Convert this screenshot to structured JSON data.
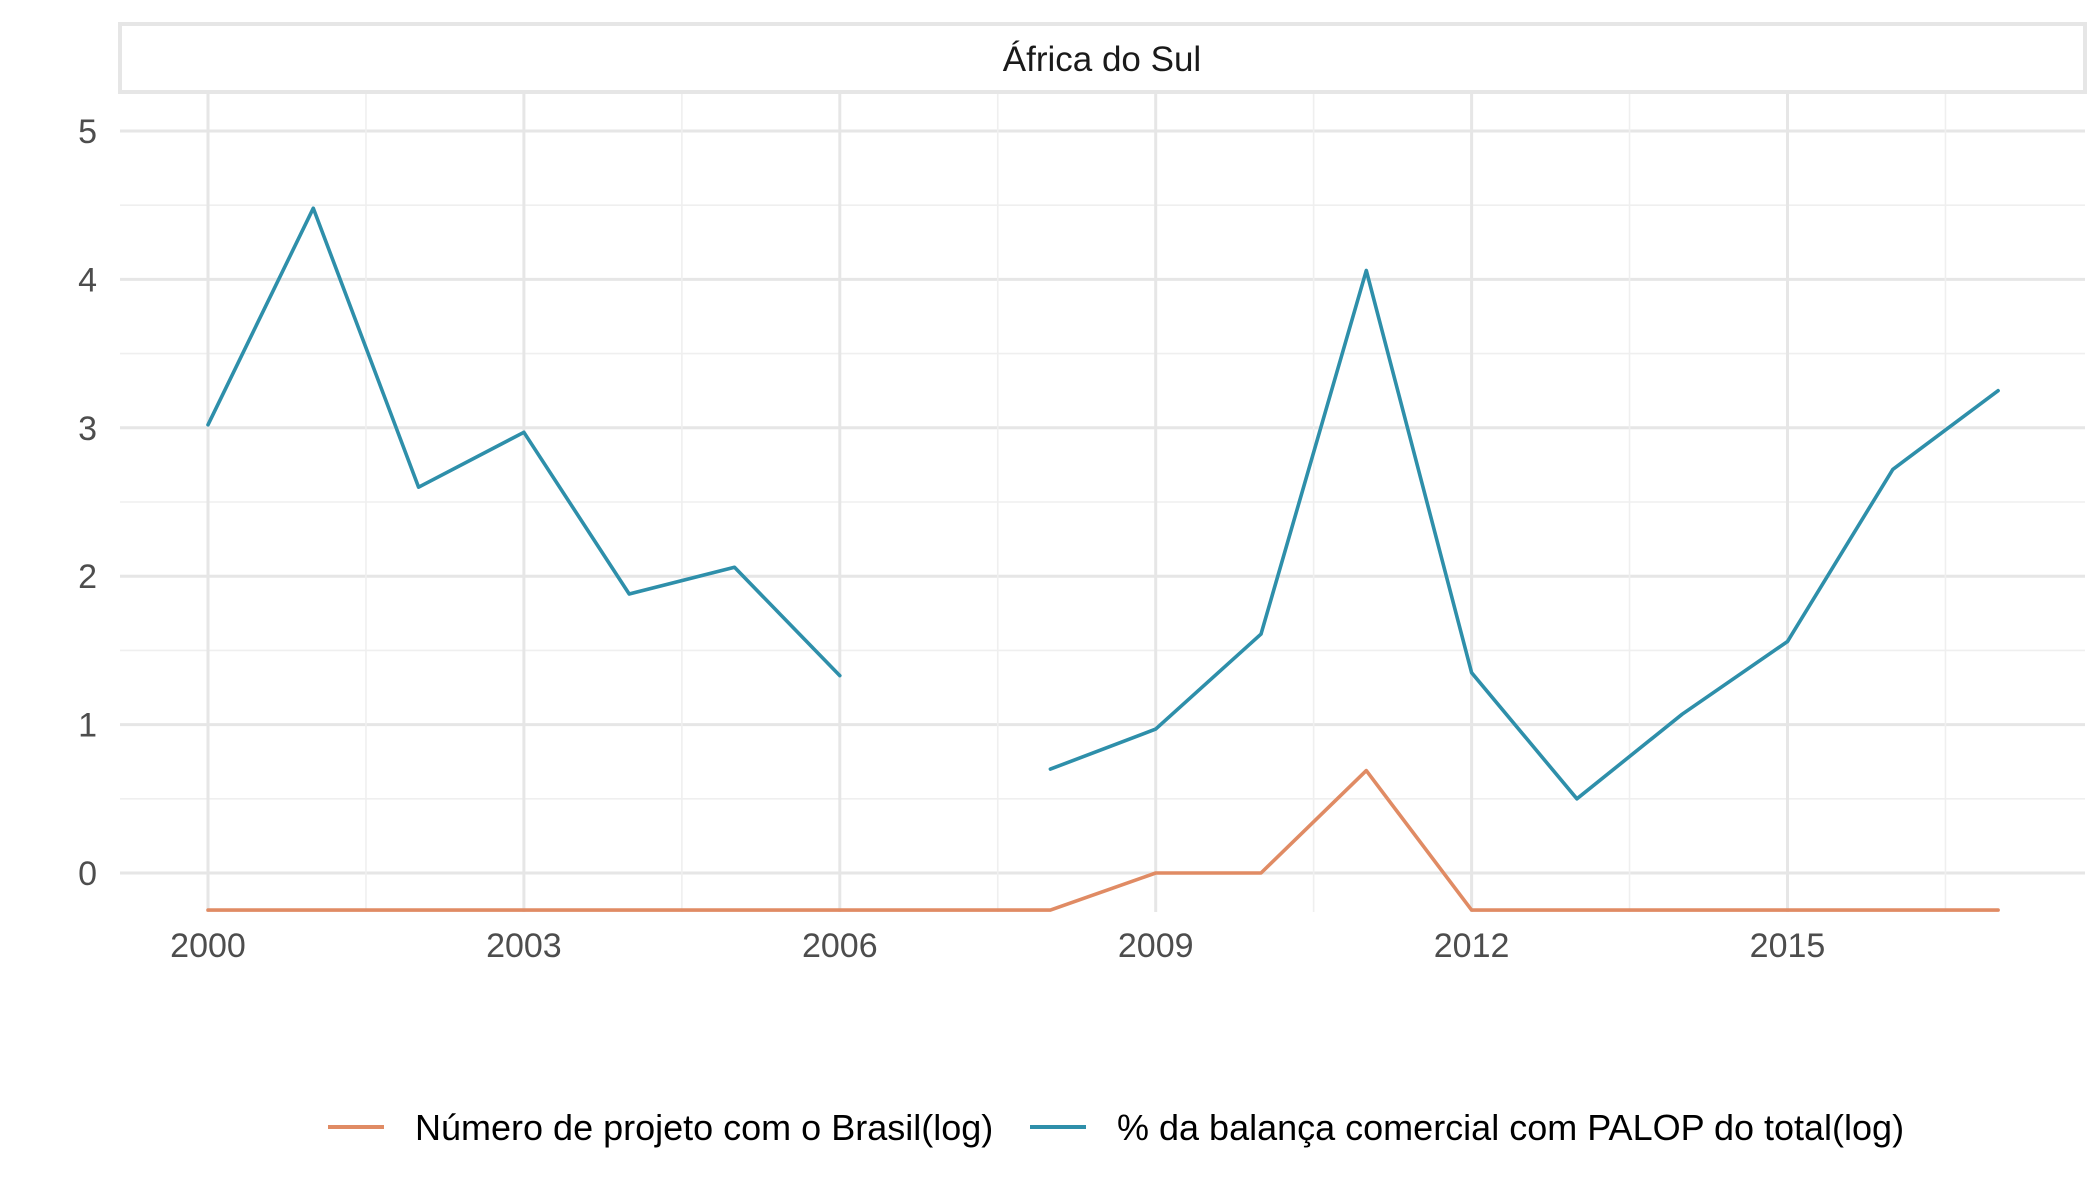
{
  "chart_data": {
    "type": "line",
    "panel_title": "África do Sul",
    "xlabel": "",
    "ylabel": "",
    "x_ticks": [
      2000,
      2003,
      2006,
      2009,
      2012,
      2015
    ],
    "y_ticks": [
      0,
      1,
      2,
      3,
      4,
      5
    ],
    "xlim": [
      2000,
      2017
    ],
    "ylim": [
      -0.25,
      5.15
    ],
    "grid": true,
    "legend_position": "bottom",
    "series": [
      {
        "name": "Número de projeto com o Brasil(log)",
        "color": "#E08B64",
        "points": [
          {
            "x": 2000,
            "y": -0.25
          },
          {
            "x": 2001,
            "y": -0.25
          },
          {
            "x": 2002,
            "y": -0.25
          },
          {
            "x": 2003,
            "y": -0.25
          },
          {
            "x": 2004,
            "y": -0.25
          },
          {
            "x": 2005,
            "y": -0.25
          },
          {
            "x": 2006,
            "y": -0.25
          },
          {
            "x": 2007,
            "y": -0.25
          },
          {
            "x": 2008,
            "y": -0.25
          },
          {
            "x": 2009,
            "y": 0
          },
          {
            "x": 2010,
            "y": 0
          },
          {
            "x": 2011,
            "y": 0.69
          },
          {
            "x": 2012,
            "y": -0.25
          },
          {
            "x": 2013,
            "y": -0.25
          },
          {
            "x": 2014,
            "y": -0.25
          },
          {
            "x": 2015,
            "y": -0.25
          },
          {
            "x": 2016,
            "y": -0.25
          },
          {
            "x": 2017,
            "y": -0.25
          }
        ]
      },
      {
        "name": "% da balança comercial com PALOP do total(log)",
        "color": "#2E8FAA",
        "points": [
          {
            "x": 2000,
            "y": 3.02
          },
          {
            "x": 2001,
            "y": 4.48
          },
          {
            "x": 2002,
            "y": 2.6
          },
          {
            "x": 2003,
            "y": 2.97
          },
          {
            "x": 2004,
            "y": 1.88
          },
          {
            "x": 2005,
            "y": 2.06
          },
          {
            "x": 2006,
            "y": 1.33
          },
          {
            "x": 2007,
            "y": null
          },
          {
            "x": 2008,
            "y": 0.7
          },
          {
            "x": 2009,
            "y": 0.97
          },
          {
            "x": 2010,
            "y": 1.61
          },
          {
            "x": 2011,
            "y": 4.06
          },
          {
            "x": 2012,
            "y": 1.35
          },
          {
            "x": 2013,
            "y": 0.5
          },
          {
            "x": 2014,
            "y": 1.07
          },
          {
            "x": 2015,
            "y": 1.56
          },
          {
            "x": 2016,
            "y": 2.72
          },
          {
            "x": 2017,
            "y": 3.25
          }
        ]
      }
    ]
  }
}
